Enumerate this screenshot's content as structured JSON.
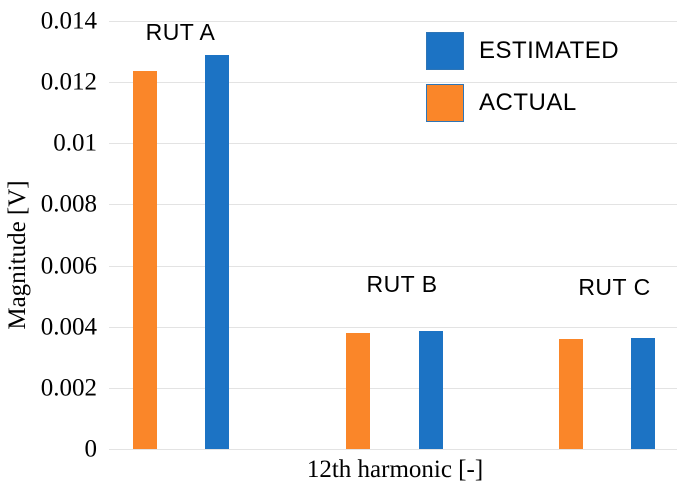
{
  "chart_data": {
    "type": "bar",
    "title": "",
    "xlabel": "12th harmonic [-]",
    "ylabel": "Magnitude [V]",
    "ylim": [
      0,
      0.014
    ],
    "ytick_values": [
      0,
      0.002,
      0.004,
      0.006,
      0.008,
      0.01,
      0.012,
      0.014
    ],
    "ytick_labels": [
      "0",
      "0.002",
      "0.004",
      "0.006",
      "0.008",
      "0.01",
      "0.012",
      "0.014"
    ],
    "grid": true,
    "categories": [
      "RUT A",
      "RUT B",
      "RUT C"
    ],
    "series": [
      {
        "name": "ACTUAL",
        "color": "#FA8629",
        "values": [
          0.01236,
          0.00378,
          0.00359
        ]
      },
      {
        "name": "ESTIMATED",
        "color": "#1C73C4",
        "values": [
          0.01289,
          0.00386,
          0.00364
        ]
      }
    ],
    "legend": {
      "position": "top-right",
      "entries": [
        "ESTIMATED",
        "ACTUAL"
      ],
      "swatch_border_color": "#2E75B6"
    },
    "colors": {
      "gridline": "#E3E3E3",
      "text": "#000000",
      "background": "#FFFFFF"
    }
  }
}
